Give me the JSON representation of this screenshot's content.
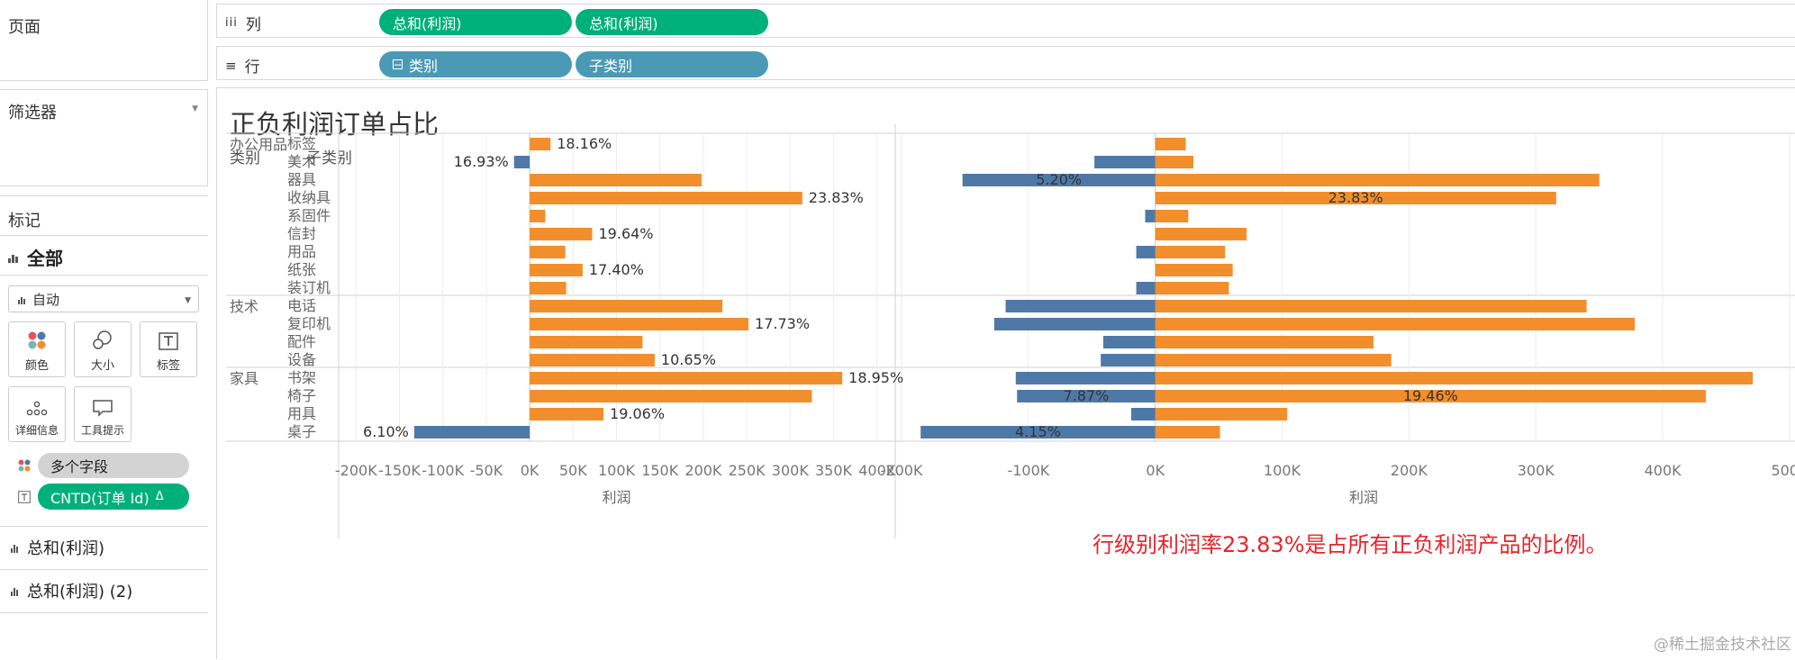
{
  "left_panel": {
    "pages_title": "页面",
    "filters_title": "筛选器",
    "marks_title": "标记",
    "marks_all_label": "全部",
    "mark_type_value": "自动",
    "mark_cards": [
      {
        "label": "颜色",
        "icon": "color-icon"
      },
      {
        "label": "大小",
        "icon": "size-icon"
      },
      {
        "label": "标签",
        "icon": "label-icon"
      },
      {
        "label": "详细信息",
        "icon": "detail-icon"
      },
      {
        "label": "工具提示",
        "icon": "tooltip-icon"
      }
    ],
    "color_pill": "多个字段",
    "label_pill": "CNTD(订单 Id)",
    "label_pill_delta": "Δ",
    "measure_1": "总和(利润)",
    "measure_2": "总和(利润) (2)"
  },
  "shelves": {
    "columns_label": "列",
    "columns_pills": [
      "总和(利润)",
      "总和(利润)"
    ],
    "rows_label": "行",
    "rows_pills": [
      "类别",
      "子类别"
    ]
  },
  "sheet": {
    "title": "正负利润订单占比",
    "header_category": "类别",
    "header_subcategory": "子类别",
    "annotation": "行级别利润率23.83%是占所有正负利润产品的比例。",
    "watermark": "@稀土掘金技术社区"
  },
  "colors": {
    "orange": "#f28e2b",
    "blue": "#4e79a7",
    "green_pill": "#00b07a",
    "teal_pill": "#4b9ab5",
    "annotation_red": "#e8232a"
  },
  "chart_data": {
    "type": "bar",
    "orientation": "horizontal",
    "groups": [
      {
        "category": "办公用品",
        "subcategories": [
          "标签",
          "美术",
          "器具",
          "收纳具",
          "系固件",
          "信封",
          "用品",
          "纸张",
          "装订机"
        ]
      },
      {
        "category": "技术",
        "subcategories": [
          "电话",
          "复印机",
          "配件",
          "设备"
        ]
      },
      {
        "category": "家具",
        "subcategories": [
          "书架",
          "椅子",
          "用具",
          "桌子"
        ]
      }
    ],
    "panels": [
      {
        "axis_title": "利润",
        "xlim": [
          -220000,
          420000
        ],
        "ticks": [
          -200000,
          -150000,
          -100000,
          -50000,
          0,
          50000,
          100000,
          150000,
          200000,
          250000,
          300000,
          350000,
          400000
        ],
        "tick_labels": [
          "-200K",
          "-150K",
          "-100K",
          "-50K",
          "0K",
          "50K",
          "100K",
          "150K",
          "200K",
          "250K",
          "300K",
          "350K",
          "400K"
        ],
        "values": [
          24000,
          -18000,
          198000,
          314000,
          18000,
          72000,
          41000,
          61000,
          42000,
          222000,
          252000,
          130000,
          144000,
          360000,
          325000,
          85000,
          -133000
        ],
        "labels": [
          "18.16%",
          "16.93%",
          "",
          "23.83%",
          "",
          "19.64%",
          "",
          "17.40%",
          "",
          "",
          "17.73%",
          "",
          "10.65%",
          "18.95%",
          "",
          "19.06%",
          "6.10%"
        ]
      },
      {
        "axis_title": "利润",
        "xlim": [
          -205000,
          505000
        ],
        "ticks": [
          -200000,
          -100000,
          0,
          100000,
          200000,
          300000,
          400000,
          500000
        ],
        "tick_labels": [
          "-200K",
          "-100K",
          "0K",
          "100K",
          "200K",
          "300K",
          "400K",
          "500K"
        ],
        "positive_values": [
          24000,
          30000,
          350000,
          316000,
          26000,
          72000,
          55000,
          61000,
          58000,
          340000,
          378000,
          172000,
          186000,
          471000,
          434000,
          104000,
          51000
        ],
        "negative_values": [
          0,
          -48000,
          -152000,
          0,
          -8000,
          0,
          -15000,
          0,
          -15000,
          -118000,
          -127000,
          -41000,
          -43000,
          -110000,
          -109000,
          -19000,
          -185000
        ],
        "labels": [
          "",
          "",
          "5.20%",
          "23.83%",
          "",
          "",
          "",
          "",
          "",
          "",
          "",
          "",
          "",
          "",
          "7.87%|19.46%",
          "",
          "4.15%"
        ]
      }
    ]
  }
}
